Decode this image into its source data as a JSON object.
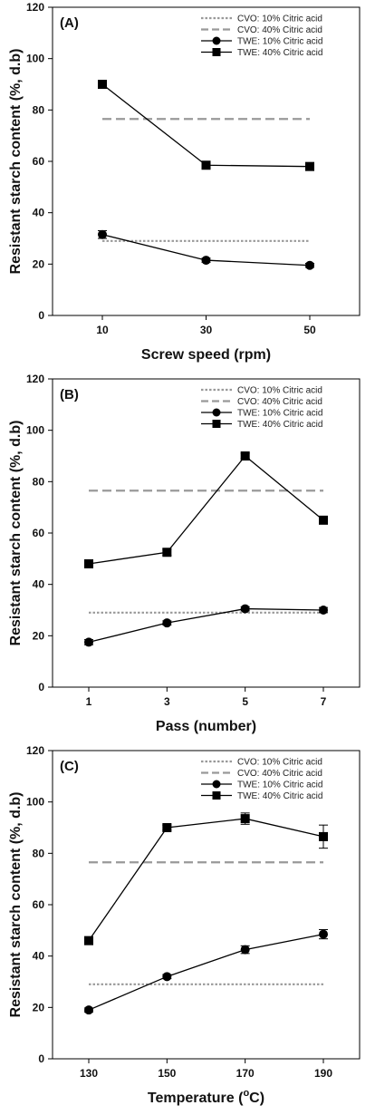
{
  "chart_data": [
    {
      "type": "line",
      "panel_label": "(A)",
      "xlabel": "Screw speed (rpm)",
      "ylabel": "Resistant starch content (%, d.b)",
      "categories": [
        "10",
        "30",
        "50"
      ],
      "ylim": [
        0,
        120
      ],
      "yticks": [
        0,
        20,
        40,
        60,
        80,
        100,
        120
      ],
      "grid": false,
      "legend_position": "top-right",
      "series": [
        {
          "name": "CVO: 10% Citric acid",
          "kind": "reference",
          "value": 29,
          "color": "#999999",
          "dash": "dotted"
        },
        {
          "name": "CVO: 40% Citric acid",
          "kind": "reference",
          "value": 76.5,
          "color": "#999999",
          "dash": "dashed"
        },
        {
          "name": "TWE: 10% Citric acid",
          "kind": "line",
          "marker": "circle",
          "values": [
            31.5,
            21.5,
            19.5
          ],
          "errors": [
            1.5,
            0.8,
            0.8
          ],
          "color": "#000000"
        },
        {
          "name": "TWE: 40% Citric acid",
          "kind": "line",
          "marker": "square",
          "values": [
            90,
            58.5,
            58
          ],
          "errors": [
            0.8,
            1.0,
            1.3
          ],
          "color": "#000000"
        }
      ]
    },
    {
      "type": "line",
      "panel_label": "(B)",
      "xlabel": "Pass (number)",
      "ylabel": "Resistant starch content (%, d.b)",
      "categories": [
        "1",
        "3",
        "5",
        "7"
      ],
      "ylim": [
        0,
        120
      ],
      "yticks": [
        0,
        20,
        40,
        60,
        80,
        100,
        120
      ],
      "grid": false,
      "legend_position": "top-right",
      "series": [
        {
          "name": "CVO: 10% Citric acid",
          "kind": "reference",
          "value": 29,
          "color": "#999999",
          "dash": "dotted"
        },
        {
          "name": "CVO: 40% Citric acid",
          "kind": "reference",
          "value": 76.5,
          "color": "#999999",
          "dash": "dashed"
        },
        {
          "name": "TWE: 10% Citric acid",
          "kind": "line",
          "marker": "circle",
          "values": [
            17.5,
            25,
            30.5,
            30
          ],
          "errors": [
            1.0,
            0.8,
            0.8,
            1.0
          ],
          "color": "#000000"
        },
        {
          "name": "TWE: 40% Citric acid",
          "kind": "line",
          "marker": "square",
          "values": [
            48,
            52.5,
            90,
            65
          ],
          "errors": [
            0.8,
            1.2,
            1.0,
            1.2
          ],
          "color": "#000000"
        }
      ]
    },
    {
      "type": "line",
      "panel_label": "(C)",
      "xlabel": "Temperature (",
      "xlabel_superscript": "o",
      "xlabel_suffix": "C)",
      "ylabel": "Resistant starch content (%, d.b)",
      "categories": [
        "130",
        "150",
        "170",
        "190"
      ],
      "ylim": [
        0,
        120
      ],
      "yticks": [
        0,
        20,
        40,
        60,
        80,
        100,
        120
      ],
      "grid": false,
      "legend_position": "top-right",
      "series": [
        {
          "name": "CVO: 10% Citric acid",
          "kind": "reference",
          "value": 29,
          "color": "#999999",
          "dash": "dotted"
        },
        {
          "name": "CVO: 40% Citric acid",
          "kind": "reference",
          "value": 76.5,
          "color": "#999999",
          "dash": "dashed"
        },
        {
          "name": "TWE: 10% Citric acid",
          "kind": "line",
          "marker": "circle",
          "values": [
            19,
            32,
            42.5,
            48.5
          ],
          "errors": [
            0.8,
            0.8,
            1.5,
            1.8
          ],
          "color": "#000000"
        },
        {
          "name": "TWE: 40% Citric acid",
          "kind": "line",
          "marker": "square",
          "values": [
            46,
            90,
            93.5,
            86.5
          ],
          "errors": [
            1.5,
            1.0,
            2.2,
            4.5
          ],
          "color": "#000000"
        }
      ]
    }
  ]
}
